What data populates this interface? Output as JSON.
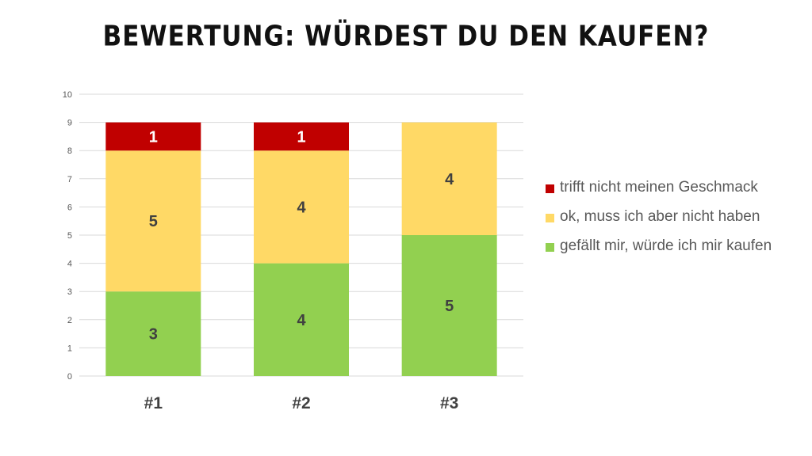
{
  "chart_data": {
    "type": "bar",
    "stacked": true,
    "title": "BEWERTUNG: WÜRDEST DU DEN KAUFEN?",
    "categories": [
      "#1",
      "#2",
      "#3"
    ],
    "ylim": [
      0,
      10
    ],
    "yticks": [
      "0",
      "1",
      "2",
      "3",
      "4",
      "5",
      "6",
      "7",
      "8",
      "9",
      "10"
    ],
    "grid": true,
    "legend_position": "right",
    "series": [
      {
        "name": "gefällt mir, würde ich mir kaufen",
        "values": [
          3,
          4,
          5
        ],
        "color": "#92D050"
      },
      {
        "name": "ok, muss ich aber nicht haben",
        "values": [
          5,
          4,
          4
        ],
        "color": "#FFD966"
      },
      {
        "name": "trifft nicht meinen Geschmack",
        "values": [
          1,
          1,
          null
        ],
        "color": "#C00000"
      }
    ],
    "data_labels": [
      [
        "3",
        "4",
        "5"
      ],
      [
        "5",
        "4",
        "4"
      ],
      [
        "1",
        "1",
        ""
      ]
    ],
    "legend_order": [
      2,
      1,
      0
    ]
  }
}
